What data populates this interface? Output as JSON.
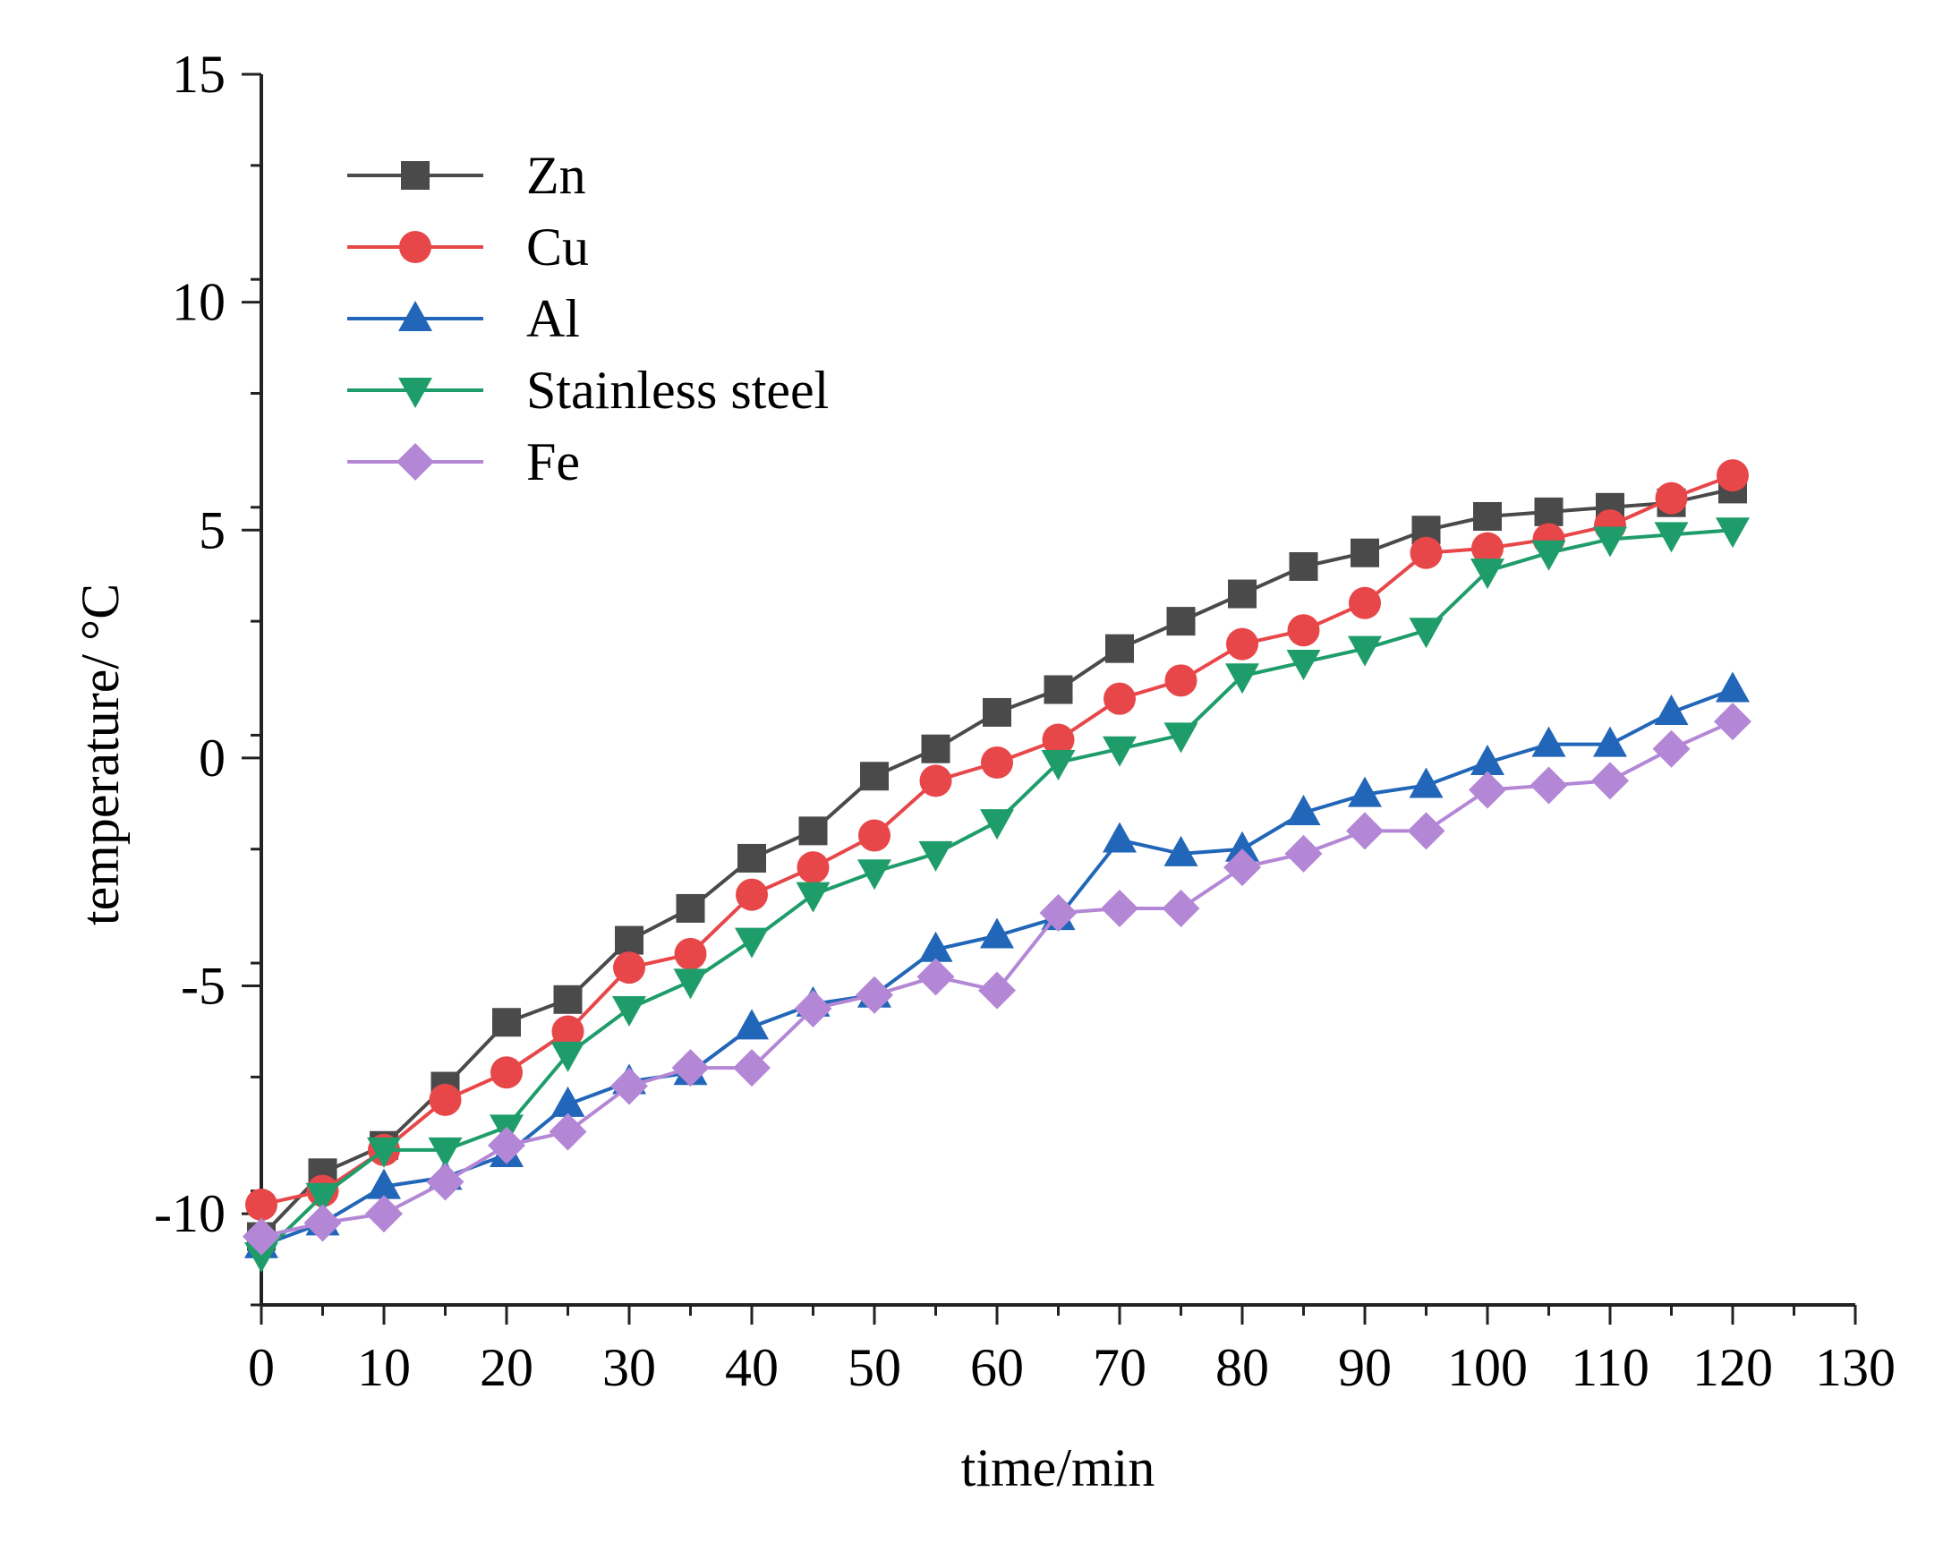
{
  "chart_data": {
    "type": "line",
    "title": "",
    "xlabel": "time/min",
    "ylabel": "temperature/ °C",
    "xlim": [
      0,
      130
    ],
    "ylim": [
      -12,
      15
    ],
    "xticks": [
      0,
      10,
      20,
      30,
      40,
      50,
      60,
      70,
      80,
      90,
      100,
      110,
      120,
      130
    ],
    "xtick_labels": [
      "0",
      "10",
      "20",
      "30",
      "40",
      "50",
      "60",
      "70",
      "80",
      "90",
      "100",
      "110",
      "120",
      "130"
    ],
    "yticks": [
      -10,
      -5,
      0,
      5,
      10,
      15
    ],
    "ytick_labels": [
      "-10",
      "-5",
      "0",
      "5",
      "10",
      "15"
    ],
    "grid": false,
    "legend_position": "top-left",
    "x": [
      0,
      5,
      10,
      15,
      20,
      25,
      30,
      35,
      40,
      45,
      50,
      55,
      60,
      65,
      70,
      75,
      80,
      85,
      90,
      95,
      100,
      105,
      110,
      115,
      120
    ],
    "series": [
      {
        "name": "Zn",
        "color": "#4a4a4a",
        "marker": "square",
        "values": [
          -10.5,
          -9.1,
          -8.5,
          -7.2,
          -5.8,
          -5.3,
          -4.0,
          -3.3,
          -2.2,
          -1.6,
          -0.4,
          0.2,
          1.0,
          1.5,
          2.4,
          3.0,
          3.6,
          4.2,
          4.5,
          5.0,
          5.3,
          5.4,
          5.5,
          5.6,
          5.9
        ]
      },
      {
        "name": "Cu",
        "color": "#e8474a",
        "marker": "circle",
        "values": [
          -9.8,
          -9.5,
          -8.6,
          -7.5,
          -6.9,
          -6.0,
          -4.6,
          -4.3,
          -3.0,
          -2.4,
          -1.7,
          -0.5,
          -0.1,
          0.4,
          1.3,
          1.7,
          2.5,
          2.8,
          3.4,
          4.5,
          4.6,
          4.8,
          5.1,
          5.7,
          6.2
        ]
      },
      {
        "name": "Al",
        "color": "#2166b8",
        "marker": "triangle-up",
        "values": [
          -10.7,
          -10.2,
          -9.4,
          -9.2,
          -8.7,
          -7.6,
          -7.1,
          -6.9,
          -5.9,
          -5.4,
          -5.2,
          -4.2,
          -3.9,
          -3.5,
          -1.8,
          -2.1,
          -2.0,
          -1.2,
          -0.8,
          -0.6,
          -0.1,
          0.3,
          0.3,
          1.0,
          1.5
        ]
      },
      {
        "name": "Stainless steel",
        "color": "#1e9d6b",
        "marker": "triangle-down",
        "values": [
          -10.9,
          -9.6,
          -8.6,
          -8.6,
          -8.1,
          -6.5,
          -5.5,
          -4.9,
          -4.0,
          -3.0,
          -2.5,
          -2.1,
          -1.4,
          -0.1,
          0.2,
          0.5,
          1.8,
          2.1,
          2.4,
          2.8,
          4.1,
          4.5,
          4.8,
          4.9,
          5.0
        ]
      },
      {
        "name": "Fe",
        "color": "#b487d6",
        "marker": "diamond",
        "values": [
          -10.5,
          -10.2,
          -10.0,
          -9.3,
          -8.5,
          -8.2,
          -7.2,
          -6.8,
          -6.8,
          -5.5,
          -5.2,
          -4.8,
          -5.1,
          -3.4,
          -3.3,
          -3.3,
          -2.4,
          -2.1,
          -1.6,
          -1.6,
          -0.7,
          -0.6,
          -0.5,
          0.2,
          0.8
        ]
      }
    ]
  }
}
